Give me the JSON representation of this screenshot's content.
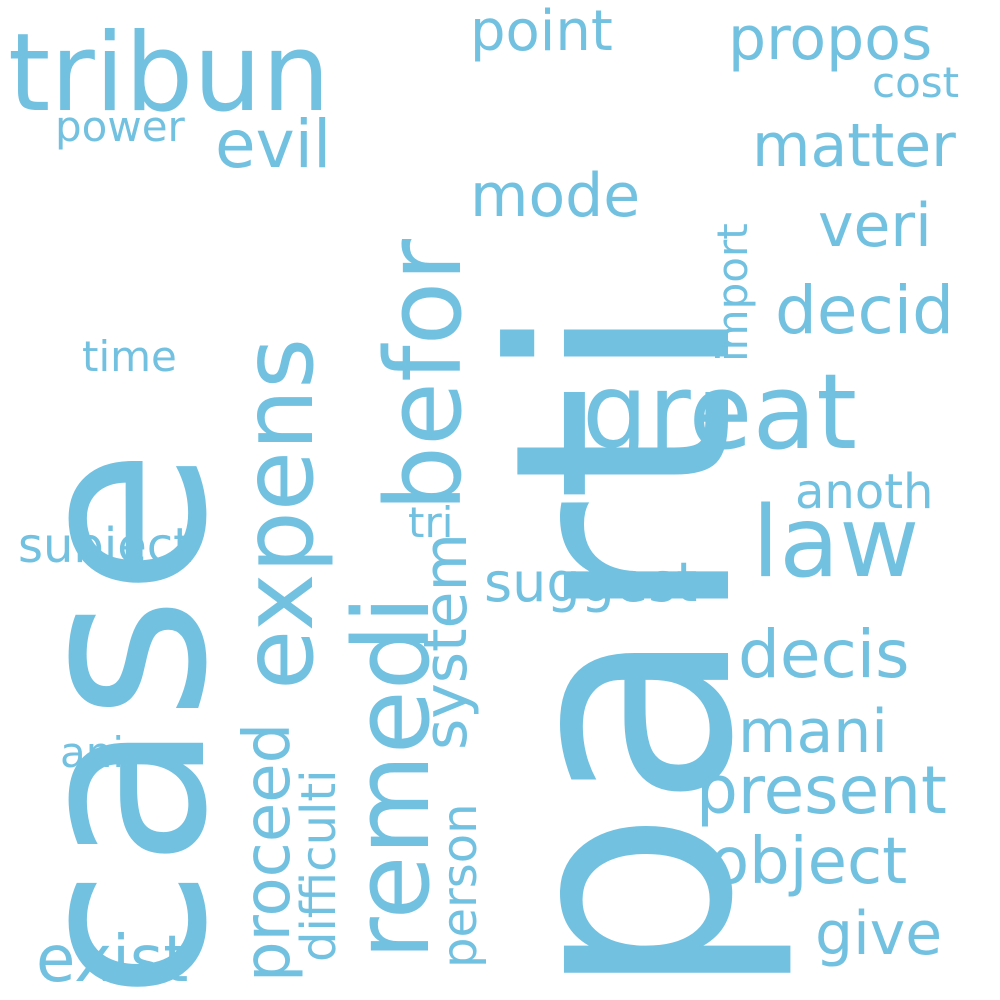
{
  "word_color": "#72c1e0",
  "background_color": "#ffffff",
  "words": {
    "parti": "parti",
    "case": "case",
    "tribun": "tribun",
    "remedi": "remedi",
    "befor": "befor",
    "expens": "expens",
    "great": "great",
    "law": "law",
    "point": "point",
    "propos": "propos",
    "cost": "cost",
    "power": "power",
    "evil": "evil",
    "matter": "matter",
    "mode": "mode",
    "veri": "veri",
    "import": "import",
    "decid": "decid",
    "time": "time",
    "anoth": "anoth",
    "tri": "tri",
    "subject": "subject",
    "suggest": "suggest",
    "system": "system",
    "decis": "decis",
    "proceed": "proceed",
    "difficulti": "difficulti",
    "mani": "mani",
    "ani": "ani",
    "present": "present",
    "person": "person",
    "object": "object",
    "give": "give",
    "exist": "exist"
  }
}
